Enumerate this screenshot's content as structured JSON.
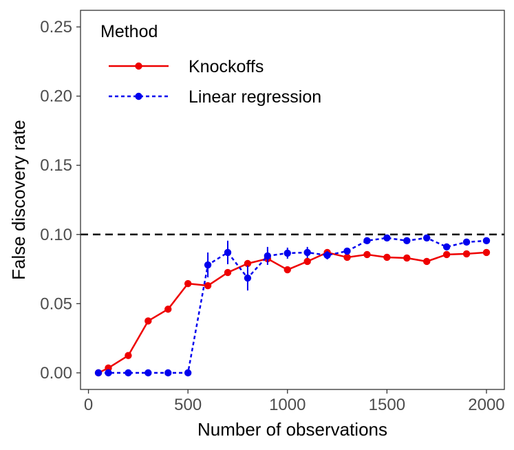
{
  "chart_data": {
    "type": "line",
    "xlabel": "Number of observations",
    "ylabel": "False discovery rate",
    "xlim": [
      -40,
      2090
    ],
    "ylim": [
      -0.012,
      0.262
    ],
    "x_ticks": [
      0,
      500,
      1000,
      1500,
      2000
    ],
    "x_tick_labels": [
      "0",
      "500",
      "1000",
      "1500",
      "2000"
    ],
    "y_ticks": [
      0.0,
      0.05,
      0.1,
      0.15,
      0.2,
      0.25
    ],
    "y_tick_labels": [
      "0.00",
      "0.05",
      "0.10",
      "0.15",
      "0.20",
      "0.25"
    ],
    "grid": false,
    "reference_line": {
      "y": 0.1,
      "style": "dashed",
      "color": "#000000"
    },
    "legend": {
      "title": "Method",
      "position": "top-left"
    },
    "series": [
      {
        "name": "Knockoffs",
        "color": "#ee0000",
        "linestyle": "solid",
        "x": [
          50,
          100,
          200,
          300,
          400,
          500,
          600,
          700,
          800,
          900,
          1000,
          1100,
          1200,
          1300,
          1400,
          1500,
          1600,
          1700,
          1800,
          1900,
          2000
        ],
        "y": [
          0.0,
          0.0035,
          0.0125,
          0.0375,
          0.046,
          0.0645,
          0.063,
          0.0725,
          0.079,
          0.0825,
          0.0745,
          0.0805,
          0.087,
          0.0835,
          0.0855,
          0.0835,
          0.083,
          0.0805,
          0.0855,
          0.086,
          0.087
        ],
        "err": [
          0,
          0.001,
          0.0015,
          0.0015,
          0.0015,
          0.0015,
          0.0015,
          0.0015,
          0.0015,
          0.0015,
          0.0015,
          0.0015,
          0.0015,
          0.0015,
          0.0015,
          0.0015,
          0.0015,
          0.0015,
          0.0015,
          0.0015,
          0.0015
        ]
      },
      {
        "name": "Linear regression",
        "color": "#0000ee",
        "linestyle": "dotted",
        "x": [
          50,
          100,
          200,
          300,
          400,
          500,
          600,
          700,
          800,
          900,
          1000,
          1100,
          1200,
          1300,
          1400,
          1500,
          1600,
          1700,
          1800,
          1900,
          2000
        ],
        "y": [
          0.0,
          0.0,
          0.0,
          0.0,
          0.0,
          0.0,
          0.078,
          0.087,
          0.0685,
          0.0845,
          0.0865,
          0.087,
          0.085,
          0.088,
          0.0955,
          0.0975,
          0.0955,
          0.0975,
          0.091,
          0.0945,
          0.0955
        ],
        "err": [
          0,
          0,
          0,
          0,
          0,
          0,
          0.009,
          0.0085,
          0.009,
          0.0065,
          0.004,
          0.004,
          0.003,
          0.002,
          0.002,
          0.002,
          0.002,
          0.002,
          0.002,
          0.002,
          0.002
        ]
      }
    ]
  }
}
